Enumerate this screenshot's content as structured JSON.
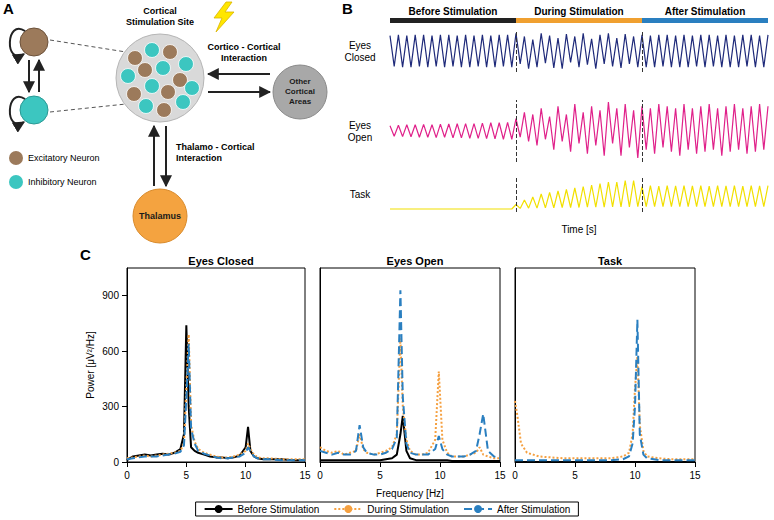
{
  "panel_labels": [
    "A",
    "B",
    "C"
  ],
  "diagram": {
    "stimulation_site": "Cortical Stimulation Site",
    "other_areas": "Other Cortical Areas",
    "thalamus": "Thalamus",
    "cortico_cortical": "Cortico - Cortical Interaction",
    "thalamo_cortical": "Thalamo - Cortical Interaction",
    "legend": [
      {
        "label": "Excitatory Neuron",
        "color": "#9c7a5b"
      },
      {
        "label": "Inhibitory Neuron",
        "color": "#3cc6c0"
      }
    ]
  },
  "chart_data": [
    {
      "type": "line",
      "xlabel": "Time [s]",
      "tick_labels": false,
      "grid": false,
      "xlim": [
        0,
        90
      ],
      "periods": [
        {
          "label": "Before Stimulation",
          "start": 0,
          "end": 30,
          "color": "#222222"
        },
        {
          "label": "During Stimulation",
          "start": 30,
          "end": 60,
          "color": "#f0a030"
        },
        {
          "label": "After Stimulation",
          "start": 60,
          "end": 90,
          "color": "#2a7fc0"
        }
      ],
      "x": [
        0,
        1,
        2,
        3,
        4,
        5,
        6,
        7,
        8,
        9,
        10,
        11,
        12,
        13,
        14,
        15,
        16,
        17,
        18,
        19,
        20,
        21,
        22,
        23,
        24,
        25,
        26,
        27,
        28,
        29,
        30,
        31,
        32,
        33,
        34,
        35,
        36,
        37,
        38,
        39,
        40,
        41,
        42,
        43,
        44,
        45,
        46,
        47,
        48,
        49,
        50,
        51,
        52,
        53,
        54,
        55,
        56,
        57,
        58,
        59,
        60,
        61,
        62,
        63,
        64,
        65,
        66,
        67,
        68,
        69,
        70,
        71,
        72,
        73,
        74,
        75,
        76,
        77,
        78,
        79,
        80,
        81,
        82,
        83,
        84,
        85,
        86,
        87,
        88,
        89,
        90
      ],
      "series": [
        {
          "name": "Eyes Closed",
          "color": "#1f2a7a",
          "line_style": "solid",
          "ylim": [
            -1.3,
            1.3
          ],
          "values": [
            0.95,
            -0.95,
            1,
            -1,
            0.95,
            -1,
            1,
            -0.95,
            1,
            -1,
            0.95,
            -0.95,
            1,
            -1,
            1,
            -0.95,
            0.95,
            -1,
            1,
            -1,
            0.95,
            -0.95,
            1,
            -1,
            0.95,
            -1,
            1,
            -0.95,
            1,
            -1,
            1.1,
            -0.8,
            0.9,
            -1.1,
            0.7,
            -1,
            1.1,
            -0.75,
            0.95,
            -1.05,
            0.8,
            -1.1,
            1.05,
            -0.7,
            0.9,
            -1,
            1.1,
            -0.85,
            0.75,
            -1.1,
            1,
            -0.8,
            1.1,
            -0.95,
            0.8,
            -1.05,
            1.05,
            -0.8,
            0.9,
            -1,
            1,
            -1,
            0.95,
            -1,
            1,
            -0.95,
            1,
            -1,
            0.95,
            -1,
            1,
            -1,
            0.95,
            -0.95,
            1,
            -1,
            1,
            -0.95,
            0.95,
            -1,
            1,
            -1,
            0.95,
            -1,
            1,
            -0.95,
            1,
            -1,
            0.95,
            -1,
            1
          ]
        },
        {
          "name": "Eyes Open",
          "color": "#e0218a",
          "line_style": "solid",
          "ylim": [
            -1.5,
            1.5
          ],
          "values": [
            0.25,
            -0.25,
            0.28,
            -0.27,
            0.3,
            -0.28,
            0.3,
            -0.3,
            0.32,
            -0.3,
            0.3,
            -0.32,
            0.33,
            -0.3,
            0.34,
            -0.33,
            0.35,
            -0.33,
            0.36,
            -0.35,
            0.36,
            -0.36,
            0.38,
            -0.37,
            0.4,
            -0.38,
            0.4,
            -0.4,
            0.42,
            -0.4,
            0.6,
            -0.3,
            0.9,
            -0.5,
            0.8,
            -0.7,
            1.1,
            -0.4,
            0.7,
            -0.9,
            1.2,
            -0.5,
            0.8,
            -1,
            1.3,
            -0.6,
            0.9,
            -1.1,
            1.2,
            -0.7,
            1,
            -1.2,
            1.4,
            -0.6,
            1.1,
            -1.2,
            1.3,
            -0.8,
            1,
            -1.3,
            1.2,
            -0.9,
            1.1,
            -1.1,
            1.3,
            -0.8,
            1.2,
            -1,
            1.1,
            -1.2,
            1.3,
            -0.9,
            1.1,
            -1.1,
            1.2,
            -1,
            1.3,
            -0.9,
            1.1,
            -1.2,
            1.2,
            -1,
            1.3,
            -0.9,
            1.1,
            -1.1,
            1.2,
            -1,
            1.3,
            -0.9,
            1.2
          ]
        },
        {
          "name": "Task",
          "color": "#f2e000",
          "line_style": "solid",
          "ylim": [
            -0.1,
            1.1
          ],
          "values": [
            0,
            0,
            0,
            0,
            0,
            0,
            0,
            0,
            0,
            0,
            0,
            0,
            0,
            0,
            0,
            0,
            0,
            0,
            0,
            0,
            0,
            0,
            0,
            0,
            0,
            0,
            0,
            0,
            0,
            0,
            0.15,
            0.02,
            0.3,
            0.03,
            0.4,
            0.03,
            0.5,
            0.04,
            0.55,
            0.04,
            0.6,
            0.05,
            0.65,
            0.05,
            0.7,
            0.05,
            0.75,
            0.06,
            0.8,
            0.06,
            0.85,
            0.06,
            0.9,
            0.07,
            0.9,
            0.07,
            0.95,
            0.07,
            0.95,
            0.08,
            0.75,
            0.08,
            0.78,
            0.08,
            0.76,
            0.08,
            0.78,
            0.08,
            0.77,
            0.08,
            0.78,
            0.08,
            0.77,
            0.08,
            0.78,
            0.08,
            0.76,
            0.08,
            0.78,
            0.08,
            0.77,
            0.08,
            0.78,
            0.08,
            0.76,
            0.08,
            0.78,
            0.08,
            0.77,
            0.08,
            0.78
          ]
        }
      ]
    },
    {
      "type": "line",
      "title": "Eyes Closed",
      "ylabel": "Power [μV²/Hz]",
      "grid": false,
      "xlim": [
        0,
        15
      ],
      "xticks": [
        0,
        5,
        10,
        15
      ],
      "ylim": [
        0,
        1050
      ],
      "yticks": [
        0,
        300,
        600,
        900
      ],
      "x": [
        0,
        0.5,
        1,
        1.5,
        2,
        2.5,
        3,
        3.5,
        4,
        4.5,
        4.8,
        5,
        5.2,
        5.4,
        5.7,
        6,
        6.5,
        7,
        7.5,
        8,
        8.5,
        9,
        9.5,
        10,
        10.2,
        10.4,
        10.7,
        11,
        11.5,
        12,
        13,
        14,
        15
      ],
      "series": [
        {
          "name": "Before Stimulation",
          "color": "#000000",
          "line_style": "solid",
          "values": [
            10,
            30,
            35,
            40,
            35,
            40,
            45,
            40,
            50,
            70,
            150,
            740,
            300,
            80,
            60,
            50,
            40,
            30,
            25,
            25,
            20,
            25,
            35,
            80,
            190,
            60,
            30,
            20,
            15,
            15,
            15,
            10,
            10
          ]
        },
        {
          "name": "During Stimulation",
          "color": "#f5a040",
          "line_style": "dotted",
          "values": [
            20,
            25,
            30,
            35,
            30,
            35,
            40,
            45,
            50,
            60,
            100,
            400,
            690,
            200,
            110,
            70,
            50,
            40,
            30,
            25,
            25,
            30,
            40,
            60,
            100,
            70,
            40,
            25,
            20,
            20,
            15,
            15,
            15
          ]
        },
        {
          "name": "After Stimulation",
          "color": "#2a7fc0",
          "line_style": "dashed",
          "values": [
            15,
            20,
            25,
            30,
            30,
            30,
            35,
            40,
            45,
            55,
            90,
            350,
            640,
            180,
            100,
            60,
            45,
            35,
            25,
            20,
            20,
            25,
            30,
            50,
            80,
            60,
            30,
            20,
            15,
            15,
            10,
            10,
            10
          ]
        }
      ]
    },
    {
      "type": "line",
      "title": "Eyes Open",
      "xlabel": "Frequency [Hz]",
      "legend": "bottom",
      "tick_labels": "x",
      "grid": false,
      "xlim": [
        0,
        15
      ],
      "xticks": [
        0,
        5,
        10,
        15
      ],
      "ylim": [
        0,
        1050
      ],
      "yticks": [
        0,
        300,
        600,
        900
      ],
      "x": [
        0,
        0.5,
        1,
        1.5,
        2,
        2.5,
        3,
        3.3,
        3.6,
        3.9,
        4.5,
        5,
        5.5,
        6,
        6.4,
        6.7,
        6.9,
        7.2,
        7.5,
        8,
        8.5,
        9,
        9.6,
        9.9,
        10.2,
        10.6,
        11,
        11.5,
        12,
        12.5,
        13,
        13.3,
        13.6,
        14,
        14.5,
        15
      ],
      "series": [
        {
          "name": "Before Stimulation",
          "color": "#000000",
          "line_style": "solid",
          "values": [
            10,
            10,
            10,
            10,
            10,
            10,
            10,
            10,
            10,
            10,
            10,
            10,
            15,
            20,
            40,
            150,
            250,
            60,
            20,
            10,
            10,
            10,
            10,
            10,
            10,
            10,
            5,
            5,
            5,
            5,
            5,
            5,
            5,
            5,
            5,
            5
          ]
        },
        {
          "name": "During Stimulation",
          "color": "#f5a040",
          "line_style": "dotted",
          "values": [
            80,
            60,
            50,
            60,
            40,
            50,
            60,
            150,
            70,
            50,
            40,
            50,
            60,
            80,
            150,
            670,
            300,
            120,
            60,
            40,
            40,
            50,
            120,
            490,
            120,
            50,
            30,
            30,
            30,
            40,
            50,
            80,
            40,
            30,
            20,
            20
          ]
        },
        {
          "name": "After Stimulation",
          "color": "#2a7fc0",
          "line_style": "dashed",
          "values": [
            60,
            50,
            40,
            50,
            40,
            40,
            60,
            200,
            80,
            50,
            40,
            40,
            50,
            70,
            130,
            930,
            350,
            100,
            50,
            40,
            40,
            40,
            70,
            140,
            70,
            40,
            30,
            30,
            30,
            40,
            60,
            150,
            260,
            60,
            30,
            20
          ]
        }
      ]
    },
    {
      "type": "line",
      "title": "Task",
      "tick_labels": "x",
      "grid": false,
      "xlim": [
        0,
        15
      ],
      "xticks": [
        0,
        5,
        10,
        15
      ],
      "ylim": [
        0,
        1050
      ],
      "yticks": [
        0,
        300,
        600,
        900
      ],
      "x": [
        0,
        0.2,
        0.5,
        1,
        2,
        3,
        4,
        5,
        6,
        7,
        8,
        9,
        9.5,
        9.8,
        10,
        10.2,
        10.4,
        10.7,
        11,
        12,
        13,
        14,
        15
      ],
      "series": [
        {
          "name": "Before Stimulation",
          "color": "#000000",
          "line_style": "solid",
          "values": [
            0,
            0,
            0,
            0,
            0,
            0,
            0,
            0,
            0,
            0,
            0,
            0,
            0,
            0,
            0,
            0,
            0,
            0,
            0,
            0,
            0,
            0,
            0
          ]
        },
        {
          "name": "During Stimulation",
          "color": "#f5a040",
          "line_style": "dotted",
          "values": [
            330,
            250,
            100,
            50,
            30,
            25,
            20,
            20,
            20,
            20,
            20,
            30,
            50,
            150,
            400,
            570,
            200,
            60,
            30,
            20,
            15,
            15,
            15
          ]
        },
        {
          "name": "After Stimulation",
          "color": "#2a7fc0",
          "line_style": "dashed",
          "values": [
            10,
            10,
            10,
            10,
            10,
            10,
            10,
            10,
            10,
            10,
            10,
            15,
            30,
            100,
            300,
            770,
            150,
            40,
            20,
            10,
            10,
            10,
            10
          ]
        }
      ]
    }
  ]
}
